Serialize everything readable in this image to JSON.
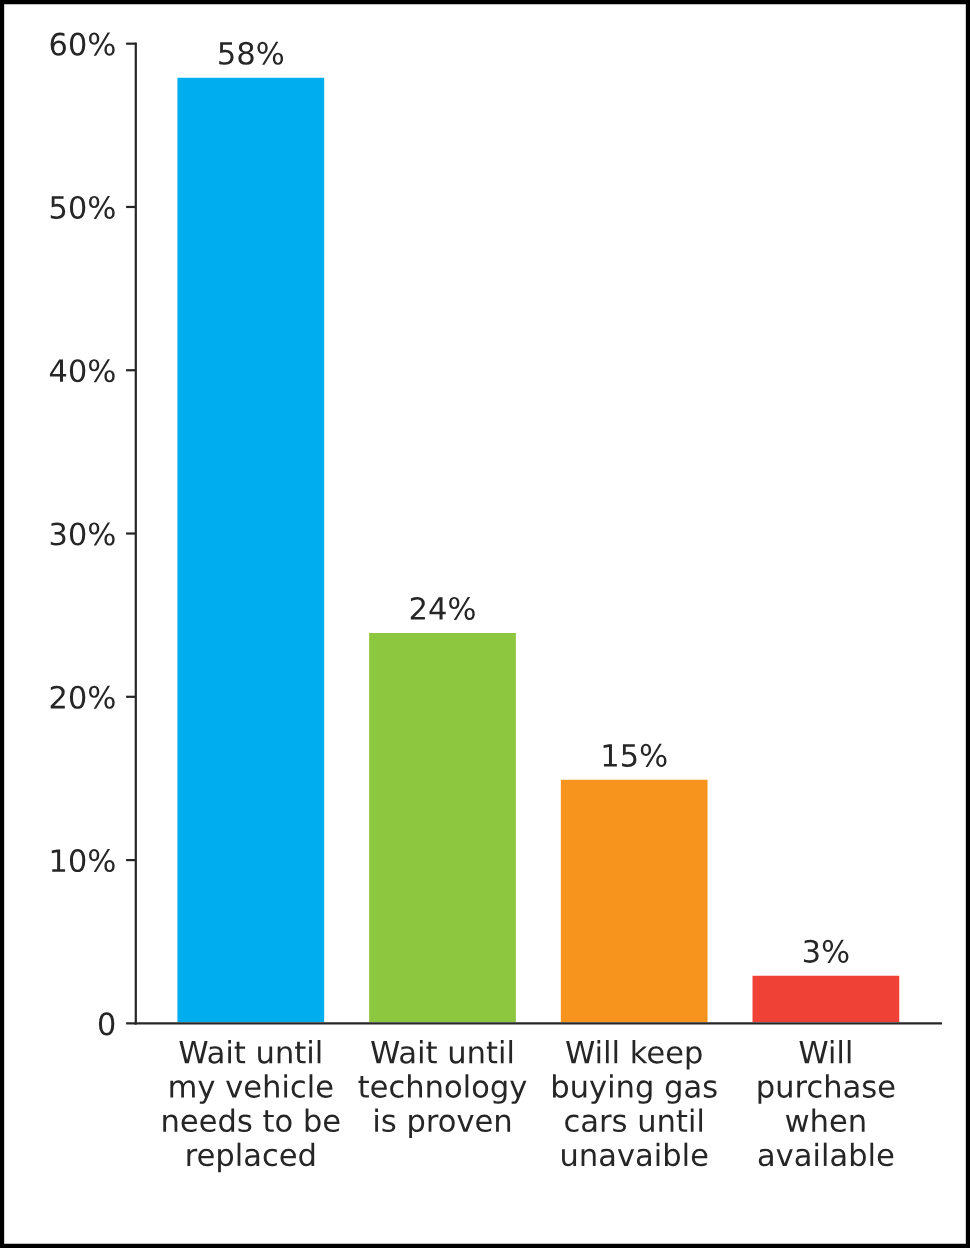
{
  "chart_data": {
    "type": "bar",
    "categories": [
      "Wait until\nmy vehicle\nneeds to be\nreplaced",
      "Wait until\ntechnology\nis proven",
      "Will keep\nbuying gas\ncars until\nunavaible",
      "Will\npurchase\nwhen\navailable"
    ],
    "values": [
      58,
      24,
      15,
      3
    ],
    "colors": [
      "#00aeef",
      "#8dc63f",
      "#f7941d",
      "#ef4136"
    ],
    "value_labels": [
      "58%",
      "24%",
      "15%",
      "3%"
    ],
    "ylim": [
      0,
      60
    ],
    "yticks": [
      0,
      {
        "value": 10,
        "label": "10%"
      },
      {
        "value": 20,
        "label": "20%"
      },
      {
        "value": 30,
        "label": "30%"
      },
      {
        "value": 40,
        "label": "40%"
      },
      {
        "value": 50,
        "label": "50%"
      },
      {
        "value": 60,
        "label": "60%"
      }
    ],
    "grid": false,
    "legend": false
  }
}
